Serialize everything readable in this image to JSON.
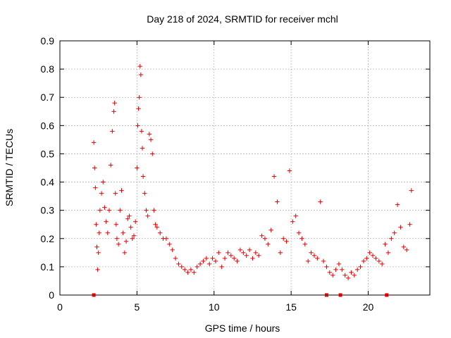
{
  "chart_data": {
    "type": "scatter",
    "title": "Day 218 of 2024, SRMTID for receiver mchl",
    "xlabel": "GPS time / hours",
    "ylabel": "SRMTID / TECUs",
    "xlim": [
      0,
      24
    ],
    "ylim": [
      0,
      0.9
    ],
    "xticks": [
      0,
      5,
      10,
      15,
      20
    ],
    "xtick_labels": [
      "0",
      "5",
      "10",
      "15",
      "20"
    ],
    "yticks": [
      0,
      0.1,
      0.2,
      0.3,
      0.4,
      0.5,
      0.6,
      0.7,
      0.8,
      0.9
    ],
    "ytick_labels": [
      "0",
      "0.1",
      "0.2",
      "0.3",
      "0.4",
      "0.5",
      "0.6",
      "0.7",
      "0.8",
      "0.9"
    ],
    "grid": true,
    "marker": "+",
    "color": "#e00000",
    "zero_markers_x": [
      2.2,
      17.3,
      18.2,
      21.2
    ],
    "series": [
      {
        "name": "SRMTID",
        "x": [
          2.2,
          2.25,
          2.3,
          2.35,
          2.4,
          2.45,
          2.5,
          2.55,
          2.6,
          2.7,
          2.8,
          2.9,
          3.0,
          3.1,
          3.2,
          3.3,
          3.4,
          3.5,
          3.55,
          3.6,
          3.65,
          3.7,
          3.8,
          3.9,
          4.0,
          4.1,
          4.2,
          4.3,
          4.4,
          4.5,
          4.6,
          4.7,
          4.8,
          4.9,
          5.0,
          5.05,
          5.1,
          5.15,
          5.2,
          5.25,
          5.3,
          5.35,
          5.4,
          5.5,
          5.6,
          5.7,
          5.8,
          5.9,
          6.0,
          6.1,
          6.2,
          6.3,
          6.5,
          6.7,
          6.9,
          7.1,
          7.3,
          7.5,
          7.7,
          7.9,
          8.1,
          8.3,
          8.5,
          8.7,
          8.9,
          9.1,
          9.3,
          9.5,
          9.7,
          9.9,
          10.1,
          10.3,
          10.5,
          10.7,
          10.9,
          11.1,
          11.3,
          11.5,
          11.7,
          11.9,
          12.1,
          12.3,
          12.5,
          12.7,
          12.9,
          13.1,
          13.3,
          13.5,
          13.7,
          13.9,
          14.1,
          14.3,
          14.5,
          14.7,
          14.9,
          15.1,
          15.3,
          15.5,
          15.7,
          15.9,
          16.1,
          16.3,
          16.5,
          16.7,
          16.9,
          17.1,
          17.3,
          17.5,
          17.7,
          17.9,
          18.1,
          18.3,
          18.5,
          18.7,
          18.9,
          19.1,
          19.3,
          19.5,
          19.7,
          19.9,
          20.1,
          20.3,
          20.5,
          20.7,
          20.9,
          21.1,
          21.3,
          21.5,
          21.7,
          21.9,
          22.1,
          22.3,
          22.5,
          22.7,
          22.8
        ],
        "y": [
          0.54,
          0.45,
          0.38,
          0.25,
          0.17,
          0.09,
          0.15,
          0.22,
          0.3,
          0.36,
          0.4,
          0.31,
          0.26,
          0.22,
          0.3,
          0.46,
          0.58,
          0.65,
          0.68,
          0.36,
          0.25,
          0.2,
          0.18,
          0.3,
          0.37,
          0.22,
          0.15,
          0.19,
          0.27,
          0.28,
          0.24,
          0.2,
          0.21,
          0.26,
          0.45,
          0.6,
          0.66,
          0.7,
          0.81,
          0.78,
          0.58,
          0.52,
          0.42,
          0.36,
          0.3,
          0.28,
          0.57,
          0.55,
          0.5,
          0.3,
          0.25,
          0.24,
          0.22,
          0.2,
          0.2,
          0.18,
          0.16,
          0.13,
          0.11,
          0.1,
          0.09,
          0.08,
          0.09,
          0.08,
          0.1,
          0.11,
          0.12,
          0.13,
          0.11,
          0.13,
          0.12,
          0.15,
          0.1,
          0.13,
          0.15,
          0.14,
          0.13,
          0.12,
          0.16,
          0.15,
          0.14,
          0.16,
          0.13,
          0.15,
          0.14,
          0.21,
          0.2,
          0.18,
          0.23,
          0.42,
          0.33,
          0.15,
          0.2,
          0.19,
          0.44,
          0.26,
          0.28,
          0.22,
          0.2,
          0.18,
          0.12,
          0.15,
          0.14,
          0.13,
          0.33,
          0.12,
          0.1,
          0.08,
          0.07,
          0.09,
          0.11,
          0.09,
          0.07,
          0.06,
          0.08,
          0.07,
          0.09,
          0.1,
          0.12,
          0.13,
          0.15,
          0.14,
          0.13,
          0.12,
          0.11,
          0.18,
          0.15,
          0.2,
          0.22,
          0.32,
          0.24,
          0.17,
          0.16,
          0.25,
          0.37
        ]
      }
    ]
  }
}
